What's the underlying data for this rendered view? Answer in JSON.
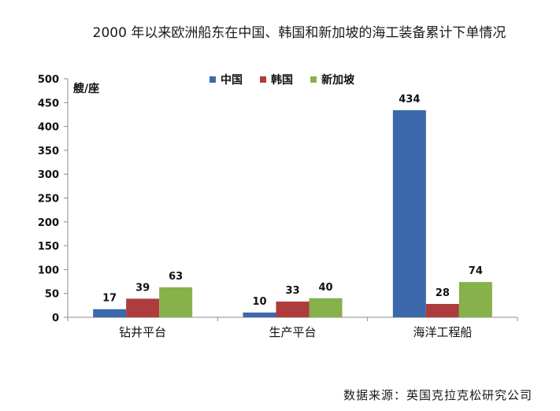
{
  "chart_data": {
    "type": "bar",
    "title": "2000 年以来欧洲船东在中国、韩国和新加坡的海工装备累计下单情况",
    "ylabel": "艘/座",
    "xlabel": "",
    "categories": [
      "钻井平台",
      "生产平台",
      "海洋工程船"
    ],
    "series": [
      {
        "name": "中国",
        "values": [
          17,
          10,
          434
        ],
        "color": "#3c68ac"
      },
      {
        "name": "韩国",
        "values": [
          39,
          33,
          28
        ],
        "color": "#ae3c3c"
      },
      {
        "name": "新加坡",
        "values": [
          63,
          40,
          74
        ],
        "color": "#86b14b"
      }
    ],
    "ylim": [
      0,
      500
    ],
    "yticks": [
      0,
      50,
      100,
      150,
      200,
      250,
      300,
      350,
      400,
      450,
      500
    ],
    "grid": false,
    "legend": "top"
  },
  "source": "数据来源：英国克拉克松研究公司"
}
